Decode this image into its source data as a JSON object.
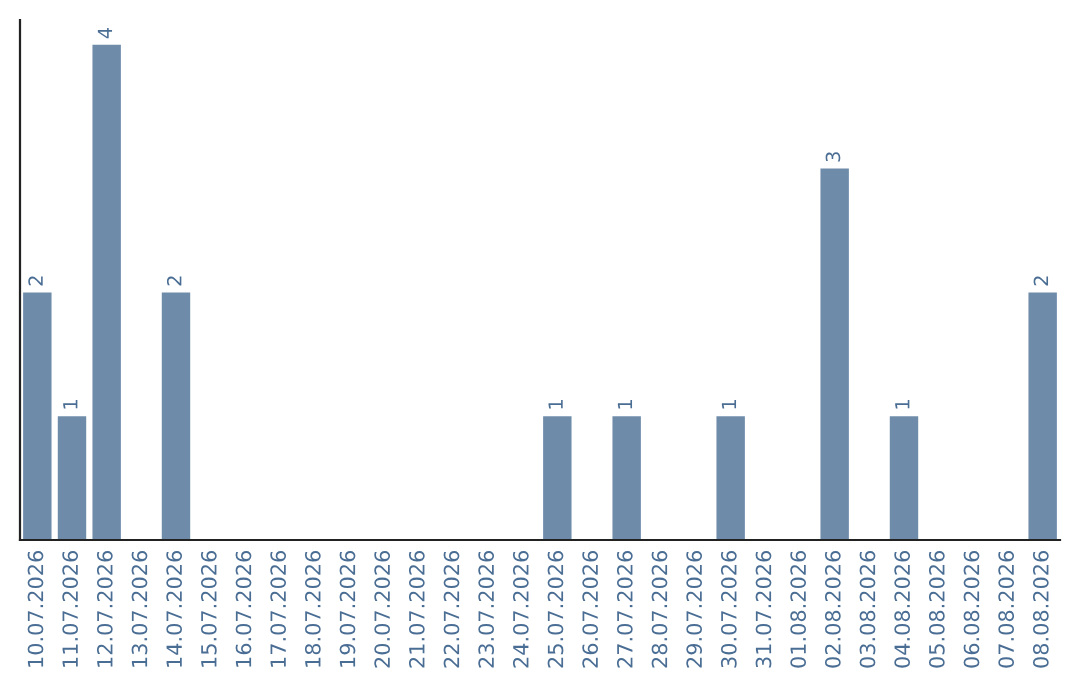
{
  "chart_data": {
    "type": "bar",
    "categories": [
      "10.07.2026",
      "11.07.2026",
      "12.07.2026",
      "13.07.2026",
      "14.07.2026",
      "15.07.2026",
      "16.07.2026",
      "17.07.2026",
      "18.07.2026",
      "19.07.2026",
      "20.07.2026",
      "21.07.2026",
      "22.07.2026",
      "23.07.2026",
      "24.07.2026",
      "25.07.2026",
      "26.07.2026",
      "27.07.2026",
      "28.07.2026",
      "29.07.2026",
      "30.07.2026",
      "31.07.2026",
      "01.08.2026",
      "02.08.2026",
      "03.08.2026",
      "04.08.2026",
      "05.08.2026",
      "06.08.2026",
      "07.08.2026",
      "08.08.2026"
    ],
    "values": [
      2,
      1,
      4,
      0,
      2,
      0,
      0,
      0,
      0,
      0,
      0,
      0,
      0,
      0,
      0,
      1,
      0,
      1,
      0,
      0,
      1,
      0,
      0,
      3,
      0,
      1,
      0,
      0,
      0,
      2
    ],
    "value_labels": [
      "2",
      "1",
      "4",
      null,
      "2",
      null,
      null,
      null,
      null,
      null,
      null,
      null,
      null,
      null,
      null,
      "1",
      null,
      "1",
      null,
      null,
      "1",
      null,
      null,
      "3",
      null,
      "1",
      null,
      null,
      null,
      "2"
    ],
    "color": "#6e8caa",
    "tick_labels": "x",
    "grid": false,
    "legend": false
  }
}
